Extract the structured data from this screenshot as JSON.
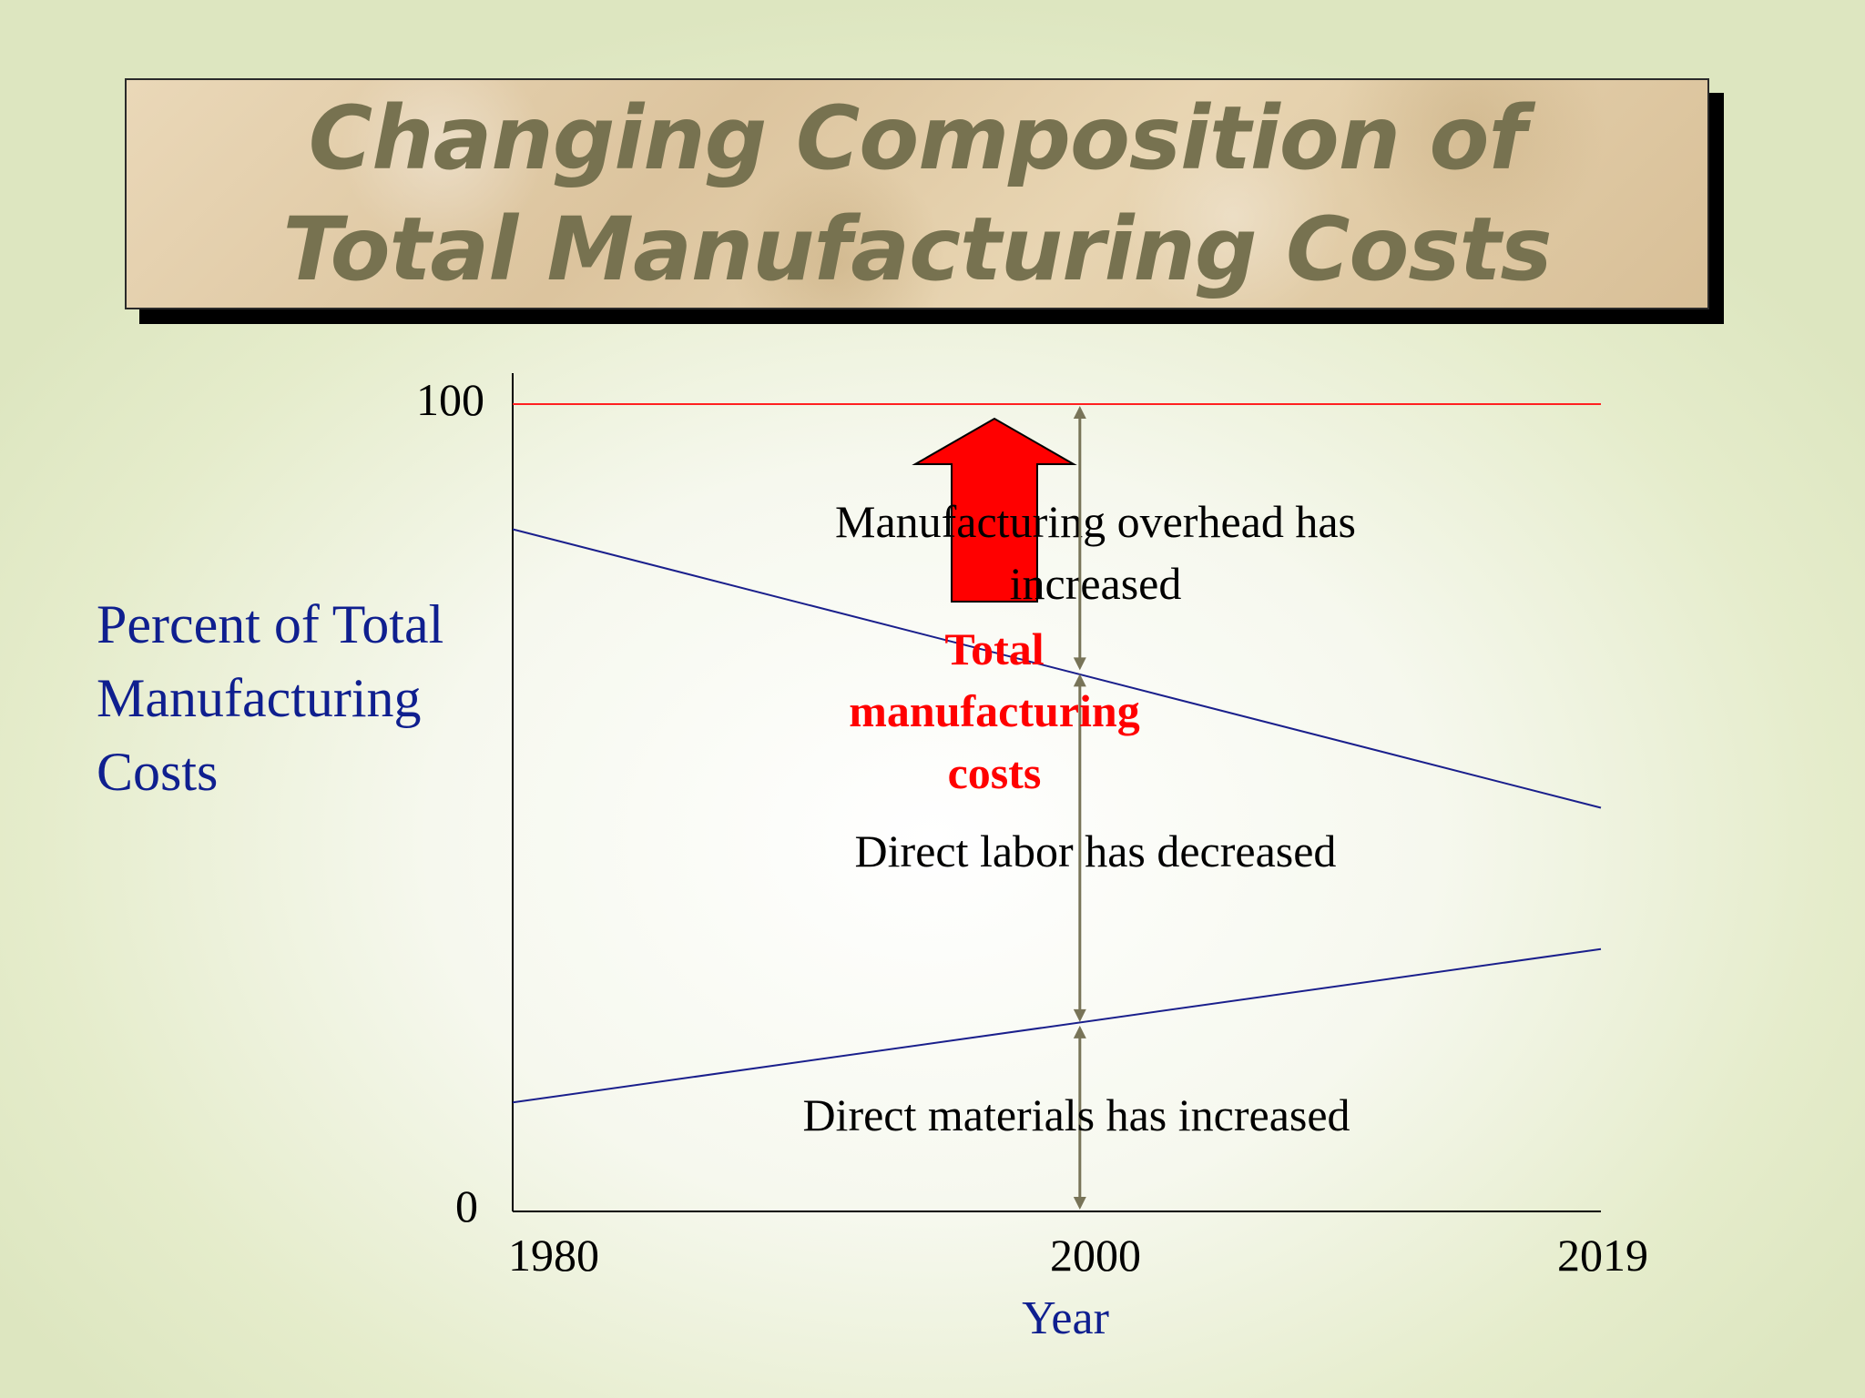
{
  "title": {
    "line1": "Changing Composition of",
    "line2": "Total Manufacturing Costs"
  },
  "colors": {
    "axis_label": "#0f1f8f",
    "trend_line": "#1a1f8c",
    "total_line": "#ff2020",
    "arrow": "#ff0000",
    "title_text": "#777250",
    "bracket": "#787458"
  },
  "chart_data": {
    "type": "line",
    "ylabel": "Percent of Total Manufacturing Costs",
    "xlabel": "Year",
    "x_ticks": [
      "1980",
      "2000",
      "2019"
    ],
    "y_ticks": [
      "100",
      "0"
    ],
    "ylim": [
      0,
      100
    ],
    "x_range": [
      1980,
      2019
    ],
    "series": [
      {
        "x": [
          1980,
          2019
        ],
        "values": [
          100,
          100
        ]
      },
      {
        "x": [
          1980,
          2019
        ],
        "values": [
          84.5,
          50
        ]
      },
      {
        "x": [
          1980,
          2019
        ],
        "values": [
          13.5,
          32.5
        ]
      }
    ],
    "annotations": [
      "Manufacturing overhead has increased",
      "Total manufacturing costs",
      "Direct labor has decreased",
      "Direct materials has increased"
    ],
    "total_label_lines": [
      "Total",
      "manufacturing",
      "costs"
    ],
    "overhead_label_lines": [
      "Manufacturing overhead has",
      "increased"
    ],
    "ylabel_lines": [
      "Percent of Total",
      "Manufacturing",
      "Costs"
    ]
  }
}
